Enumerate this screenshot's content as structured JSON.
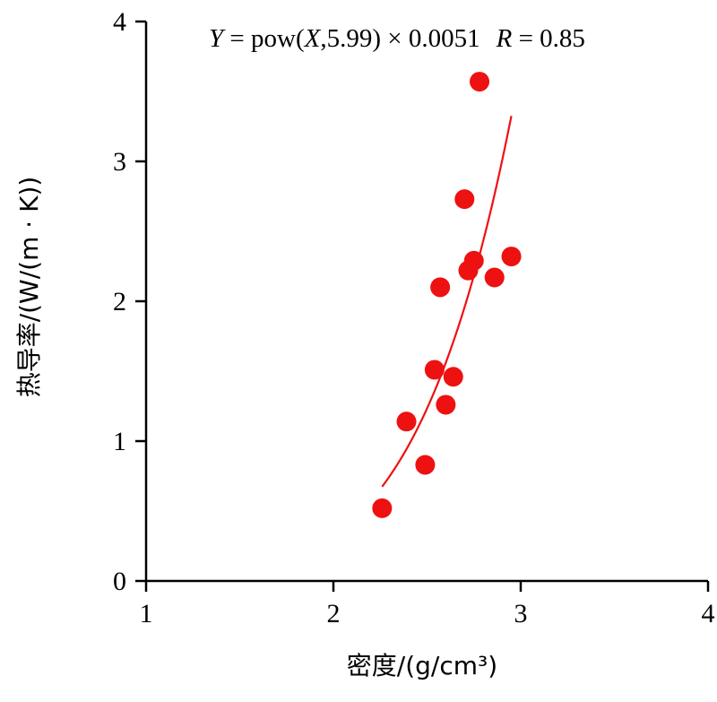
{
  "chart_data": {
    "type": "scatter",
    "title": "",
    "xlabel": "密度/(g/cm³)",
    "ylabel": "热导率/(W/(m · K))",
    "xlim": [
      1,
      4
    ],
    "ylim": [
      0,
      4
    ],
    "x_ticks": [
      "1",
      "2",
      "3",
      "4"
    ],
    "y_ticks": [
      "0",
      "1",
      "2",
      "3",
      "4"
    ],
    "grid": false,
    "legend": "none",
    "point_color": "#ee1111",
    "curve_color": "#ee1111",
    "points": [
      {
        "x": 2.26,
        "y": 0.52
      },
      {
        "x": 2.39,
        "y": 1.14
      },
      {
        "x": 2.49,
        "y": 0.83
      },
      {
        "x": 2.54,
        "y": 1.51
      },
      {
        "x": 2.57,
        "y": 2.1
      },
      {
        "x": 2.6,
        "y": 1.26
      },
      {
        "x": 2.64,
        "y": 1.46
      },
      {
        "x": 2.7,
        "y": 2.73
      },
      {
        "x": 2.72,
        "y": 2.22
      },
      {
        "x": 2.75,
        "y": 2.29
      },
      {
        "x": 2.78,
        "y": 3.57
      },
      {
        "x": 2.86,
        "y": 2.17
      },
      {
        "x": 2.95,
        "y": 2.32
      }
    ],
    "fit": {
      "exponent": 5.99,
      "coefficient": 0.0051,
      "x_range": [
        2.26,
        2.95
      ],
      "equation_parts": {
        "y_var": "Y",
        "eq_mid1": " = pow(",
        "x_var": "X",
        "eq_mid2": ",5.99) × 0.0051",
        "r_var": "R",
        "r_eq": " = 0.85"
      }
    }
  }
}
